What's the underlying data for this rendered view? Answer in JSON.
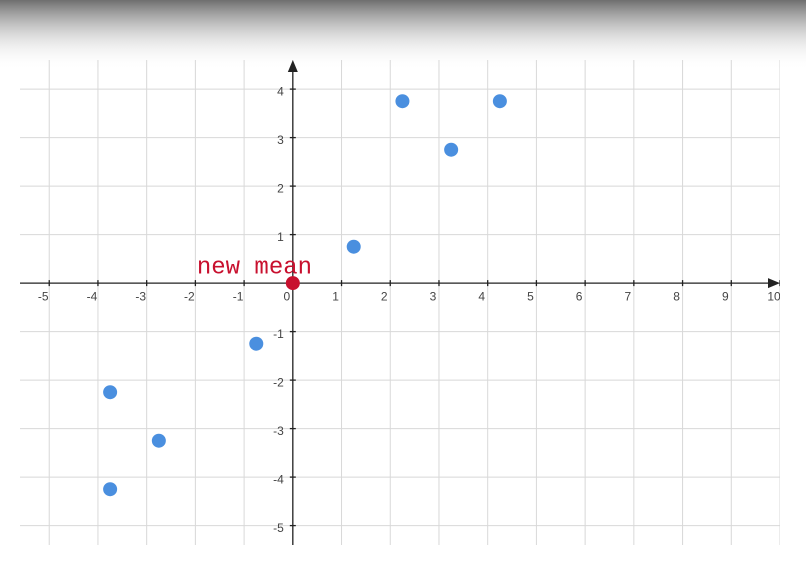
{
  "chart_data": {
    "type": "scatter",
    "series": [
      {
        "color": "#4a8fdf",
        "x": [
          2.25,
          4.25,
          3.25,
          1.25,
          -0.75,
          -3.75,
          -2.75,
          -3.75
        ],
        "y": [
          3.75,
          3.75,
          2.75,
          0.75,
          -1.25,
          -2.25,
          -3.25,
          -4.25
        ]
      }
    ],
    "annotation": {
      "text": "new mean",
      "x": 0,
      "y": 0,
      "color": "#c8102e"
    },
    "xlim": [
      -5.6,
      10
    ],
    "ylim": [
      -5.4,
      4.6
    ],
    "xticks": [
      -5,
      -4,
      -3,
      -2,
      -1,
      0,
      1,
      2,
      3,
      4,
      5,
      6,
      7,
      8,
      9,
      {
        "value": 10,
        "label": "10"
      }
    ],
    "yticks": [
      -5,
      -4,
      -3,
      -2,
      -1,
      1,
      2,
      3,
      4
    ],
    "grid": true
  }
}
